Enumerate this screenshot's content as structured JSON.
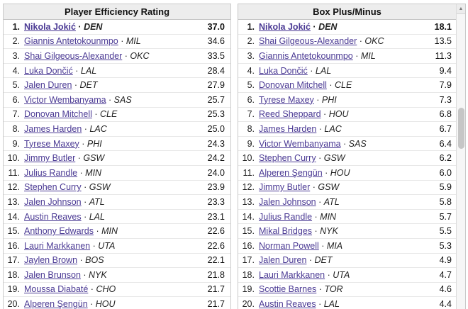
{
  "colors": {
    "link": "#4b3a94",
    "header_bg": "#ededed",
    "panel_border": "#c9c9c9",
    "row_border": "#e8e8e8"
  },
  "icons": {
    "scroll_up": "▲"
  },
  "panels": [
    {
      "title": "Player Efficiency Rating",
      "rows": [
        {
          "rank": "1.",
          "name": "Nikola Jokić",
          "team": "DEN",
          "value": "37.0",
          "bold": true
        },
        {
          "rank": "2.",
          "name": "Giannis Antetokounmpo",
          "team": "MIL",
          "value": "34.6"
        },
        {
          "rank": "3.",
          "name": "Shai Gilgeous-Alexander",
          "team": "OKC",
          "value": "33.5"
        },
        {
          "rank": "4.",
          "name": "Luka Dončić",
          "team": "LAL",
          "value": "28.4"
        },
        {
          "rank": "5.",
          "name": "Jalen Duren",
          "team": "DET",
          "value": "27.9"
        },
        {
          "rank": "6.",
          "name": "Victor Wembanyama",
          "team": "SAS",
          "value": "25.7"
        },
        {
          "rank": "7.",
          "name": "Donovan Mitchell",
          "team": "CLE",
          "value": "25.3"
        },
        {
          "rank": "8.",
          "name": "James Harden",
          "team": "LAC",
          "value": "25.0"
        },
        {
          "rank": "9.",
          "name": "Tyrese Maxey",
          "team": "PHI",
          "value": "24.3"
        },
        {
          "rank": "10.",
          "name": "Jimmy Butler",
          "team": "GSW",
          "value": "24.2"
        },
        {
          "rank": "11.",
          "name": "Julius Randle",
          "team": "MIN",
          "value": "24.0"
        },
        {
          "rank": "12.",
          "name": "Stephen Curry",
          "team": "GSW",
          "value": "23.9"
        },
        {
          "rank": "13.",
          "name": "Jalen Johnson",
          "team": "ATL",
          "value": "23.3"
        },
        {
          "rank": "14.",
          "name": "Austin Reaves",
          "team": "LAL",
          "value": "23.1"
        },
        {
          "rank": "15.",
          "name": "Anthony Edwards",
          "team": "MIN",
          "value": "22.6"
        },
        {
          "rank": "16.",
          "name": "Lauri Markkanen",
          "team": "UTA",
          "value": "22.6"
        },
        {
          "rank": "17.",
          "name": "Jaylen Brown",
          "team": "BOS",
          "value": "22.1"
        },
        {
          "rank": "18.",
          "name": "Jalen Brunson",
          "team": "NYK",
          "value": "21.8"
        },
        {
          "rank": "19.",
          "name": "Moussa Diabaté",
          "team": "CHO",
          "value": "21.7"
        },
        {
          "rank": "20.",
          "name": "Alperen Şengün",
          "team": "HOU",
          "value": "21.7"
        }
      ]
    },
    {
      "title": "Box Plus/Minus",
      "rows": [
        {
          "rank": "1.",
          "name": "Nikola Jokić",
          "team": "DEN",
          "value": "18.1",
          "bold": true
        },
        {
          "rank": "2.",
          "name": "Shai Gilgeous-Alexander",
          "team": "OKC",
          "value": "13.5"
        },
        {
          "rank": "3.",
          "name": "Giannis Antetokounmpo",
          "team": "MIL",
          "value": "11.3"
        },
        {
          "rank": "4.",
          "name": "Luka Dončić",
          "team": "LAL",
          "value": "9.4"
        },
        {
          "rank": "5.",
          "name": "Donovan Mitchell",
          "team": "CLE",
          "value": "7.9"
        },
        {
          "rank": "6.",
          "name": "Tyrese Maxey",
          "team": "PHI",
          "value": "7.3"
        },
        {
          "rank": "7.",
          "name": "Reed Sheppard",
          "team": "HOU",
          "value": "6.8"
        },
        {
          "rank": "8.",
          "name": "James Harden",
          "team": "LAC",
          "value": "6.7"
        },
        {
          "rank": "9.",
          "name": "Victor Wembanyama",
          "team": "SAS",
          "value": "6.4"
        },
        {
          "rank": "10.",
          "name": "Stephen Curry",
          "team": "GSW",
          "value": "6.2"
        },
        {
          "rank": "11.",
          "name": "Alperen Şengün",
          "team": "HOU",
          "value": "6.0"
        },
        {
          "rank": "12.",
          "name": "Jimmy Butler",
          "team": "GSW",
          "value": "5.9"
        },
        {
          "rank": "13.",
          "name": "Jalen Johnson",
          "team": "ATL",
          "value": "5.8"
        },
        {
          "rank": "14.",
          "name": "Julius Randle",
          "team": "MIN",
          "value": "5.7"
        },
        {
          "rank": "15.",
          "name": "Mikal Bridges",
          "team": "NYK",
          "value": "5.5"
        },
        {
          "rank": "16.",
          "name": "Norman Powell",
          "team": "MIA",
          "value": "5.3"
        },
        {
          "rank": "17.",
          "name": "Jalen Duren",
          "team": "DET",
          "value": "4.9"
        },
        {
          "rank": "18.",
          "name": "Lauri Markkanen",
          "team": "UTA",
          "value": "4.7"
        },
        {
          "rank": "19.",
          "name": "Scottie Barnes",
          "team": "TOR",
          "value": "4.6"
        },
        {
          "rank": "20.",
          "name": "Austin Reaves",
          "team": "LAL",
          "value": "4.4"
        }
      ]
    }
  ]
}
